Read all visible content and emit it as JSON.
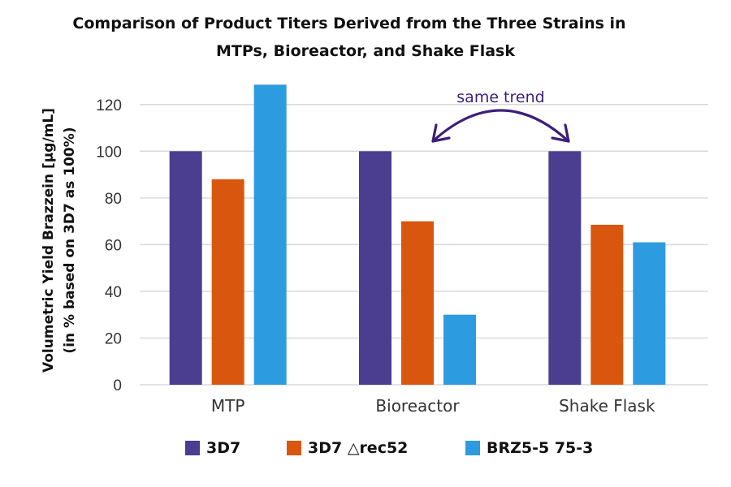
{
  "chart_data": {
    "type": "bar",
    "title_line1": "Comparison of Product Titers Derived from the Three Strains in",
    "title_line2": "MTPs, Bioreactor, and Shake Flask",
    "ylabel_line1": "Volumetric Yield Brazzein [µg/mL]",
    "ylabel_line2": "(in % based on 3D7 as 100%)",
    "xlabel": "",
    "categories": [
      "MTP",
      "Bioreactor",
      "Shake Flask"
    ],
    "series": [
      {
        "name": "3D7",
        "color": "#4b3d8f",
        "values": [
          100,
          100,
          100
        ]
      },
      {
        "name": "3D7 △rec52",
        "color": "#d9560f",
        "values": [
          88,
          70,
          68.5
        ]
      },
      {
        "name": "BRZ5-5 75-3",
        "color": "#2d9be0",
        "values": [
          128.5,
          30,
          61
        ]
      }
    ],
    "ylim": [
      0,
      130
    ],
    "yticks": [
      0,
      20,
      40,
      60,
      80,
      100,
      120
    ],
    "grid": true,
    "legend_position": "bottom",
    "annotation": {
      "text": "same trend",
      "color": "#3d1f7a",
      "connects": [
        "Bioreactor",
        "Shake Flask"
      ]
    }
  }
}
